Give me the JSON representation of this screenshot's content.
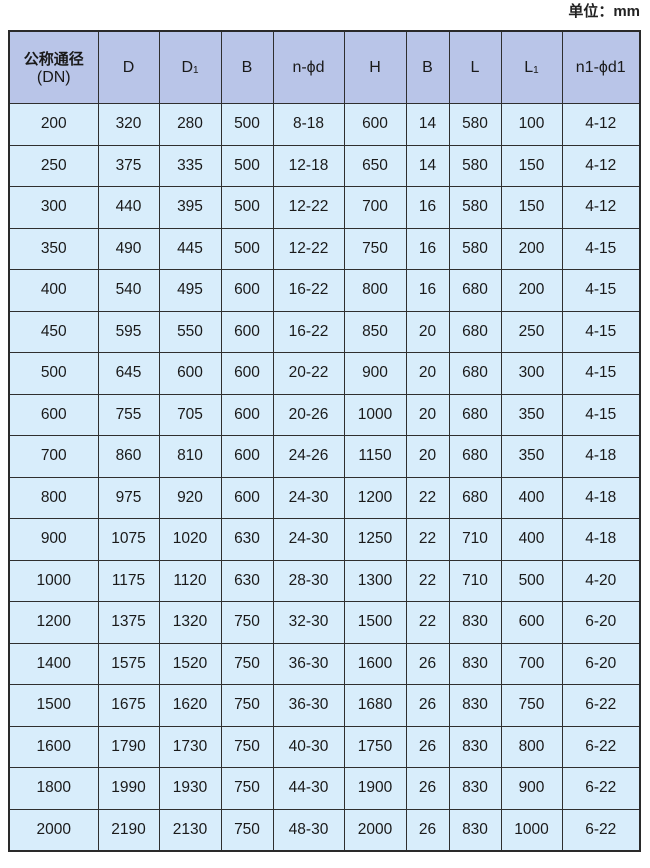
{
  "unit_label": "单位：mm",
  "table": {
    "headers": [
      {
        "main": "公称通径",
        "sub": "(DN)"
      },
      {
        "main": "D",
        "sub": ""
      },
      {
        "main": "D",
        "sub": "1"
      },
      {
        "main": "B",
        "sub": ""
      },
      {
        "main": "n-ϕd",
        "sub": ""
      },
      {
        "main": "H",
        "sub": ""
      },
      {
        "main": "B",
        "sub": ""
      },
      {
        "main": "L",
        "sub": ""
      },
      {
        "main": "L",
        "sub": "1"
      },
      {
        "main": "n1-ϕd1",
        "sub": ""
      }
    ],
    "rows": [
      [
        "200",
        "320",
        "280",
        "500",
        "8-18",
        "600",
        "14",
        "580",
        "100",
        "4-12"
      ],
      [
        "250",
        "375",
        "335",
        "500",
        "12-18",
        "650",
        "14",
        "580",
        "150",
        "4-12"
      ],
      [
        "300",
        "440",
        "395",
        "500",
        "12-22",
        "700",
        "16",
        "580",
        "150",
        "4-12"
      ],
      [
        "350",
        "490",
        "445",
        "500",
        "12-22",
        "750",
        "16",
        "580",
        "200",
        "4-15"
      ],
      [
        "400",
        "540",
        "495",
        "600",
        "16-22",
        "800",
        "16",
        "680",
        "200",
        "4-15"
      ],
      [
        "450",
        "595",
        "550",
        "600",
        "16-22",
        "850",
        "20",
        "680",
        "250",
        "4-15"
      ],
      [
        "500",
        "645",
        "600",
        "600",
        "20-22",
        "900",
        "20",
        "680",
        "300",
        "4-15"
      ],
      [
        "600",
        "755",
        "705",
        "600",
        "20-26",
        "1000",
        "20",
        "680",
        "350",
        "4-15"
      ],
      [
        "700",
        "860",
        "810",
        "600",
        "24-26",
        "1150",
        "20",
        "680",
        "350",
        "4-18"
      ],
      [
        "800",
        "975",
        "920",
        "600",
        "24-30",
        "1200",
        "22",
        "680",
        "400",
        "4-18"
      ],
      [
        "900",
        "1075",
        "1020",
        "630",
        "24-30",
        "1250",
        "22",
        "710",
        "400",
        "4-18"
      ],
      [
        "1000",
        "1175",
        "1120",
        "630",
        "28-30",
        "1300",
        "22",
        "710",
        "500",
        "4-20"
      ],
      [
        "1200",
        "1375",
        "1320",
        "750",
        "32-30",
        "1500",
        "22",
        "830",
        "600",
        "6-20"
      ],
      [
        "1400",
        "1575",
        "1520",
        "750",
        "36-30",
        "1600",
        "26",
        "830",
        "700",
        "6-20"
      ],
      [
        "1500",
        "1675",
        "1620",
        "750",
        "36-30",
        "1680",
        "26",
        "830",
        "750",
        "6-22"
      ],
      [
        "1600",
        "1790",
        "1730",
        "750",
        "40-30",
        "1750",
        "26",
        "830",
        "800",
        "6-22"
      ],
      [
        "1800",
        "1990",
        "1930",
        "750",
        "44-30",
        "1900",
        "26",
        "830",
        "900",
        "6-22"
      ],
      [
        "2000",
        "2190",
        "2130",
        "750",
        "48-30",
        "2000",
        "26",
        "830",
        "1000",
        "6-22"
      ]
    ]
  },
  "colors": {
    "header_bg": "#b9c5e8",
    "cell_bg": "#d8edfb",
    "border": "#2f2f2f"
  }
}
